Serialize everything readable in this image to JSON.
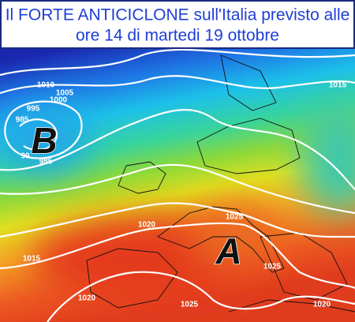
{
  "header": {
    "lines": [
      "Il FORTE ANTICICLONE sull'Italia previsto alle",
      "ore 14 di martedi 19 ottobre"
    ]
  },
  "map": {
    "pressure_centers": [
      "B",
      "A"
    ],
    "isobar_labels": [
      "1010",
      "1005",
      "1000",
      "995",
      "985",
      "99",
      "985",
      "1015",
      "1025",
      "1020",
      "1015",
      "1025",
      "1020",
      "1025",
      "1020"
    ]
  }
}
